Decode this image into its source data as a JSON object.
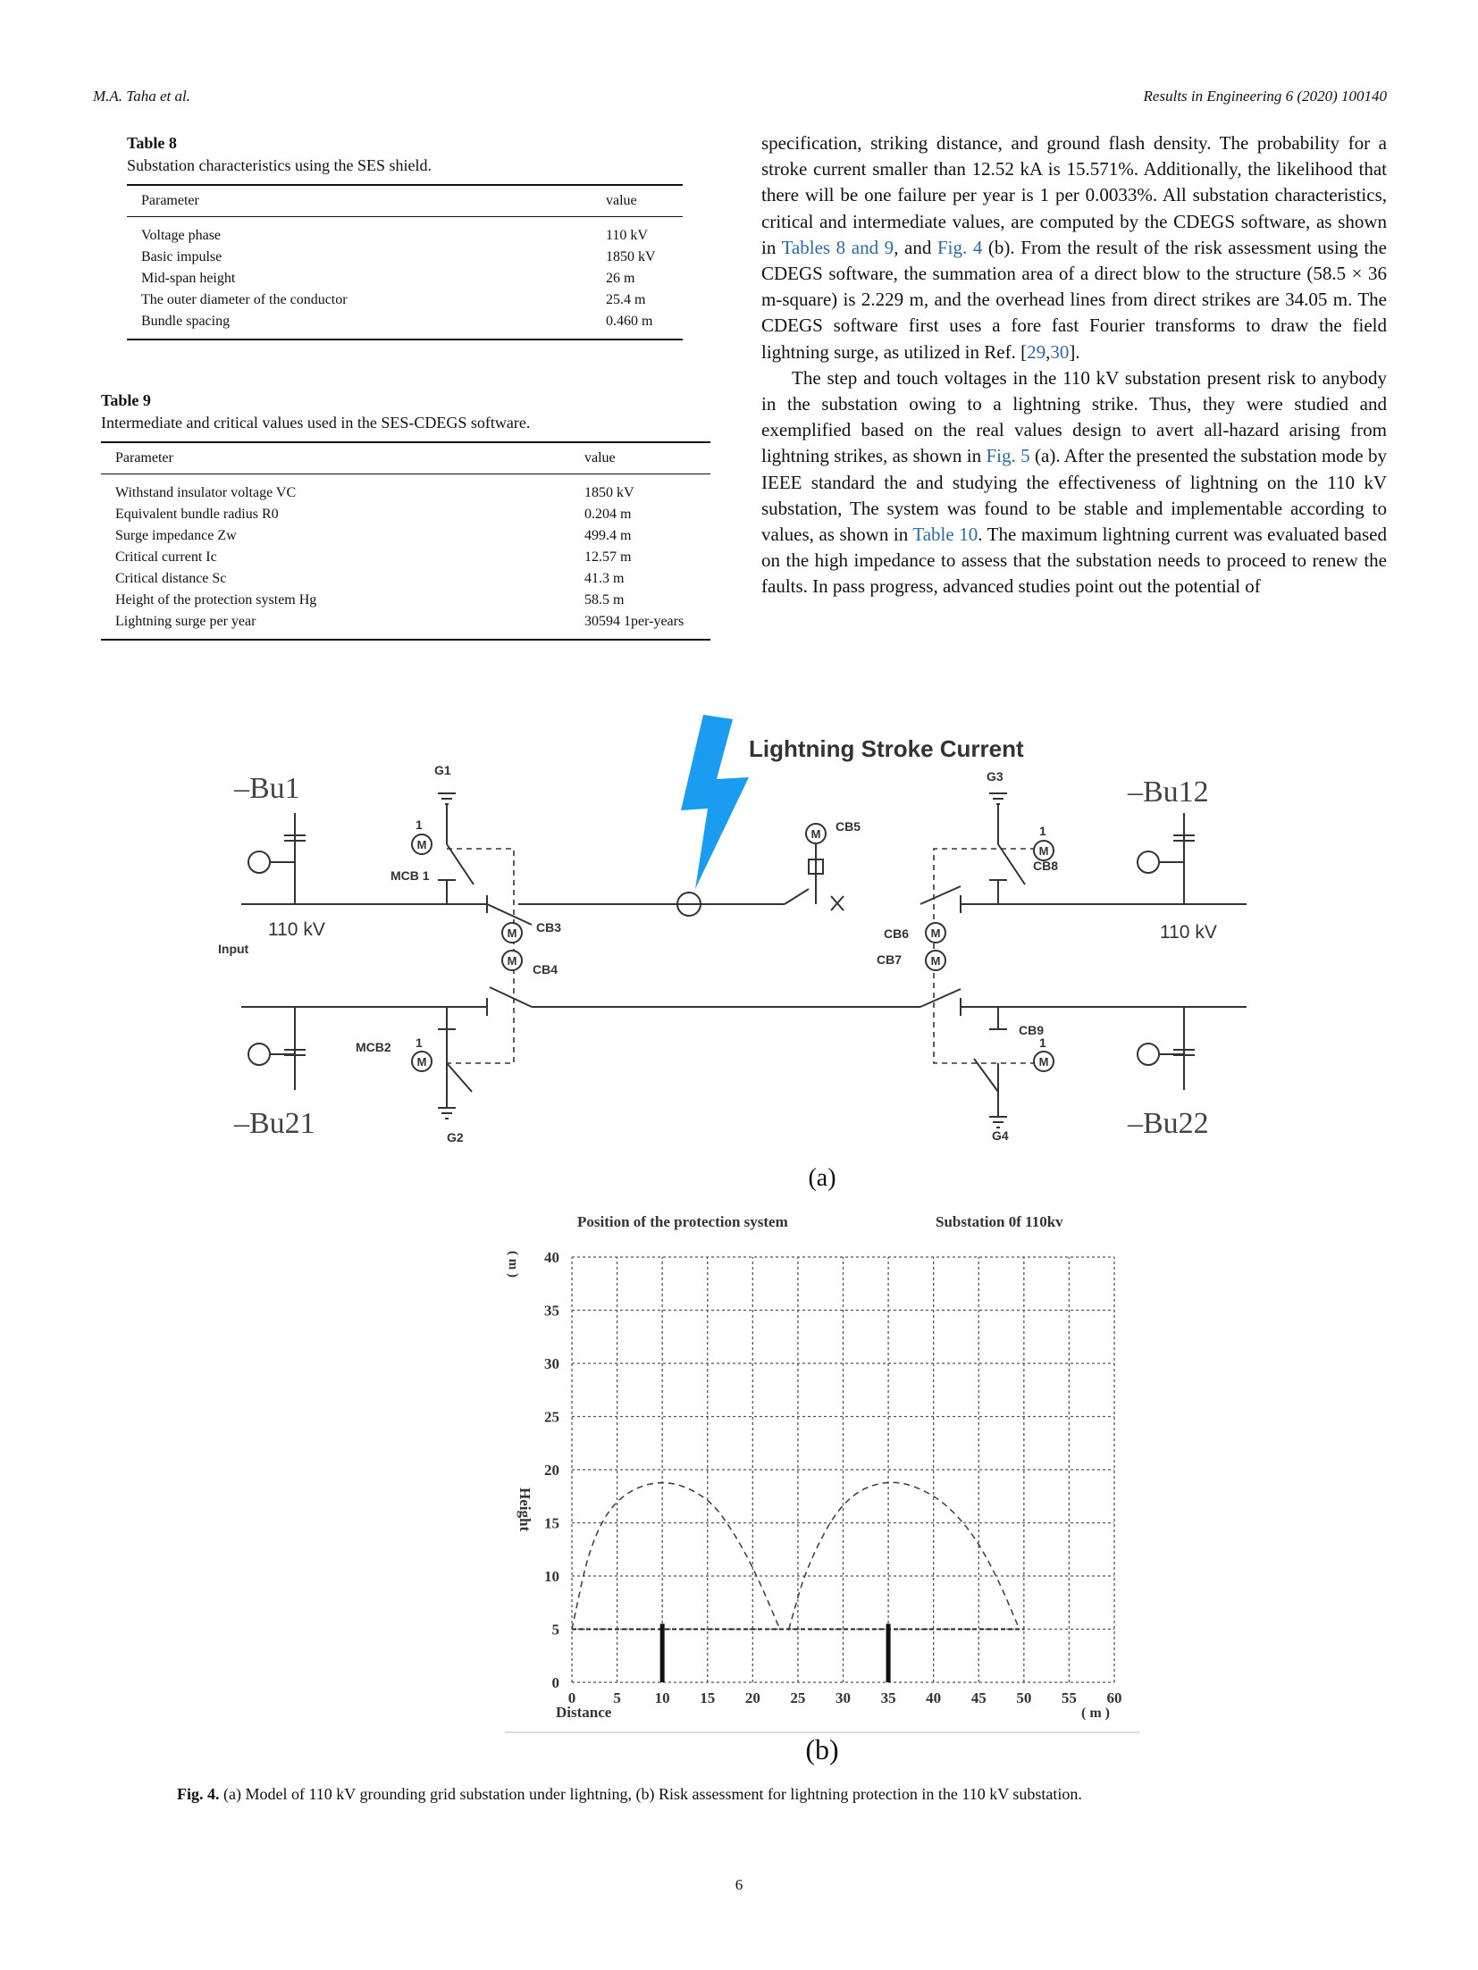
{
  "header": {
    "authors": "M.A. Taha et al.",
    "journal": "Results in Engineering 6 (2020) 100140"
  },
  "table8": {
    "title": "Table 8",
    "caption": "Substation characteristics using the SES shield.",
    "headers": [
      "Parameter",
      "value"
    ],
    "rows": [
      [
        "Voltage phase",
        "110 kV"
      ],
      [
        "Basic impulse",
        "1850 kV"
      ],
      [
        "Mid-span height",
        "26 m"
      ],
      [
        "The outer diameter of the conductor",
        "25.4 m"
      ],
      [
        "Bundle spacing",
        "0.460 m"
      ]
    ]
  },
  "table9": {
    "title": "Table 9",
    "caption": "Intermediate and critical values used in the SES-CDEGS software.",
    "headers": [
      "Parameter",
      "value"
    ],
    "rows": [
      [
        "Withstand insulator voltage VC",
        "1850 kV"
      ],
      [
        "Equivalent bundle radius R0",
        "0.204 m"
      ],
      [
        "Surge impedance Zw",
        "499.4 m"
      ],
      [
        "Critical current Ic",
        "12.57 m"
      ],
      [
        "Critical distance Sc",
        "41.3 m"
      ],
      [
        "Height of the protection system Hg",
        "58.5 m"
      ],
      [
        "Lightning surge per year",
        "30594 1per-years"
      ]
    ]
  },
  "body": {
    "p1_a": "specification, striking distance, and ground flash density. The probability for a stroke current smaller than 12.52 kA is 15.571%. Additionally, the likelihood that there will be one failure per year is 1 per 0.0033%. All substation characteristics, critical and intermediate values, are computed by the CDEGS software, as shown in ",
    "p1_link1": "Tables 8 and 9",
    "p1_b": ", and ",
    "p1_link2": "Fig. 4",
    "p1_c": " (b). From the result of the risk assessment using the CDEGS software, the summation area of a direct blow to the structure (58.5 × 36 m-square) is 2.229 m, and the overhead lines from direct strikes are 34.05 m. The CDEGS software first uses a fore fast Fourier transforms to draw the field lightning surge, as utilized in Ref. [",
    "p1_ref1": "29",
    "p1_comma": ",",
    "p1_ref2": "30",
    "p1_d": "].",
    "p2_a": "The step and touch voltages in the 110 kV substation present risk to anybody in the substation owing to a lightning strike. Thus, they were studied and exemplified based on the real values design to avert all-hazard arising from lightning strikes, as shown in ",
    "p2_link1": "Fig. 5",
    "p2_b": " (a). After the presented the substation mode by IEEE standard the and studying the effectiveness of lightning on the 110 kV substation, The system was found to be stable and implementable according to values, as shown in ",
    "p2_link2": "Table 10",
    "p2_c": ". The maximum lightning current was evaluated based on the high impedance to assess that the substation needs to proceed to renew the faults. In pass progress, advanced studies point out the potential of"
  },
  "diagram": {
    "title": "Lightning Stroke Current",
    "bus_tl": "–Bu1",
    "bus_tr": "–Bu12",
    "bus_bl": "–Bu21",
    "bus_br": "–Bu22",
    "voltage_left": "110 kV",
    "voltage_right": "110 kV",
    "input": "Input",
    "g1": "G1",
    "g2": "G2",
    "g3": "G3",
    "g4": "G4",
    "mcb1": "MCB 1",
    "mcb2": "MCB2",
    "cb3": "CB3",
    "cb4": "CB4",
    "cb5": "CB5",
    "cb6": "CB6",
    "cb7": "CB7",
    "cb8": "CB8",
    "cb9": "CB9",
    "motor": "M",
    "one": "1",
    "label": "(a)",
    "colors": {
      "bolt": "#1a9cf0",
      "line": "#333333"
    }
  },
  "risk_plot": {
    "label": "(b)",
    "chart_data": {
      "type": "line",
      "title": "Position of the protection system",
      "subtitle": "Substation 0f 110kv",
      "xlabel": "Distance",
      "xunit": "( m )",
      "ylabel": "Height",
      "yunit": "( m )",
      "xlim": [
        0,
        60
      ],
      "ylim": [
        0,
        40
      ],
      "xticks": [
        0,
        5,
        10,
        15,
        20,
        25,
        30,
        35,
        40,
        45,
        50,
        55,
        60
      ],
      "yticks": [
        0,
        5,
        10,
        15,
        20,
        25,
        30,
        35,
        40
      ],
      "grid": true,
      "masts": [
        {
          "x": 10,
          "height": 5.5
        },
        {
          "x": 35,
          "height": 5.5
        }
      ],
      "protected_line": {
        "y": 5,
        "x": [
          0,
          50
        ]
      },
      "arcs": [
        {
          "x": [
            0,
            2,
            5,
            10,
            15,
            18,
            20.5,
            23
          ],
          "y": [
            5,
            13,
            17.5,
            19.2,
            17.5,
            14,
            10,
            5
          ]
        },
        {
          "x": [
            24,
            26,
            30,
            35,
            40,
            44,
            47,
            49.5
          ],
          "y": [
            5,
            11,
            17.3,
            19.2,
            17.8,
            14.5,
            10,
            5
          ]
        }
      ]
    }
  },
  "caption": {
    "lead": "Fig. 4.",
    "text": " (a) Model of 110 kV grounding grid substation under lightning, (b) Risk assessment for lightning protection in the 110 kV substation."
  },
  "page_number": "6"
}
